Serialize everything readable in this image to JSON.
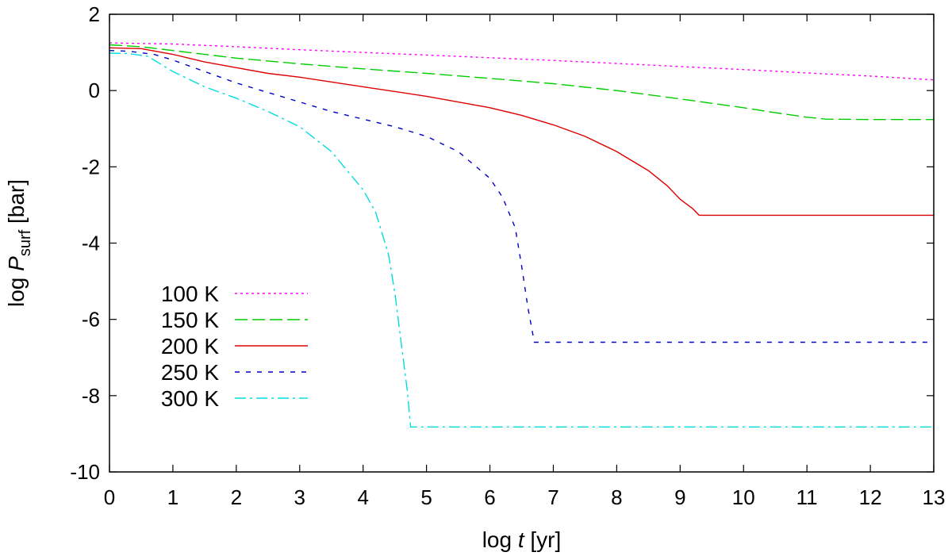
{
  "chart_data": {
    "type": "line",
    "title": "",
    "xlabel": {
      "prefix": "log ",
      "var": "t",
      "suffix": " [yr]"
    },
    "ylabel": {
      "prefix": "log ",
      "var": "P",
      "sub": "surf",
      "suffix": " [bar]"
    },
    "xlim": [
      0,
      13
    ],
    "ylim": [
      -10,
      2
    ],
    "xticks": [
      0,
      1,
      2,
      3,
      4,
      5,
      6,
      7,
      8,
      9,
      10,
      11,
      12,
      13
    ],
    "yticks": [
      -10,
      -8,
      -6,
      -4,
      -2,
      0,
      2
    ],
    "xtick_labels": [
      "0",
      "1",
      "2",
      "3",
      "4",
      "5",
      "6",
      "7",
      "8",
      "9",
      "10",
      "11",
      "12",
      "13"
    ],
    "ytick_labels": [
      "-10",
      "-8",
      "-6",
      "-4",
      "-2",
      "0",
      "2"
    ],
    "grid": false,
    "legend_position": "lower-left",
    "series": [
      {
        "name": "100 K",
        "color": "#ff00ff",
        "style": "dotted",
        "x": [
          0,
          1,
          2,
          3,
          4,
          5,
          6,
          7,
          8,
          9,
          10,
          11,
          12,
          13
        ],
        "y": [
          1.25,
          1.22,
          1.15,
          1.07,
          1.0,
          0.93,
          0.86,
          0.79,
          0.71,
          0.63,
          0.55,
          0.46,
          0.38,
          0.28
        ]
      },
      {
        "name": "150 K",
        "color": "#00cc00",
        "style": "dashed-long",
        "x": [
          0,
          0.5,
          1,
          2,
          3,
          4,
          5,
          6,
          7,
          8,
          9,
          10,
          10.5,
          11,
          11.3,
          12,
          13
        ],
        "y": [
          1.2,
          1.15,
          1.05,
          0.85,
          0.7,
          0.57,
          0.45,
          0.32,
          0.18,
          0.0,
          -0.22,
          -0.45,
          -0.58,
          -0.7,
          -0.75,
          -0.76,
          -0.76
        ]
      },
      {
        "name": "200 K",
        "color": "#dd0000",
        "style": "solid",
        "x": [
          0,
          0.5,
          1,
          1.5,
          2,
          2.5,
          3,
          4,
          5,
          6,
          6.5,
          7,
          7.5,
          8,
          8.5,
          8.8,
          9.0,
          9.2,
          9.3,
          10,
          11,
          12,
          13
        ],
        "y": [
          1.12,
          1.1,
          0.95,
          0.75,
          0.6,
          0.45,
          0.35,
          0.1,
          -0.15,
          -0.45,
          -0.65,
          -0.9,
          -1.2,
          -1.6,
          -2.1,
          -2.5,
          -2.85,
          -3.1,
          -3.27,
          -3.27,
          -3.27,
          -3.27,
          -3.27
        ]
      },
      {
        "name": "250 K",
        "color": "#0000cc",
        "style": "dashed",
        "x": [
          0,
          0.3,
          0.7,
          1,
          1.5,
          2,
          2.5,
          3,
          3.5,
          4,
          4.5,
          5,
          5.5,
          6,
          6.2,
          6.4,
          6.5,
          6.6,
          6.7,
          7,
          8,
          9,
          10,
          11,
          12,
          13
        ],
        "y": [
          1.05,
          1.03,
          0.95,
          0.8,
          0.5,
          0.2,
          -0.05,
          -0.3,
          -0.55,
          -0.75,
          -0.95,
          -1.2,
          -1.6,
          -2.3,
          -2.8,
          -3.6,
          -4.6,
          -5.7,
          -6.6,
          -6.6,
          -6.6,
          -6.6,
          -6.6,
          -6.6,
          -6.6,
          -6.6
        ]
      },
      {
        "name": "300 K",
        "color": "#00dddd",
        "style": "dashdot",
        "x": [
          0,
          0.3,
          0.6,
          1,
          1.5,
          2,
          2.5,
          3,
          3.5,
          4,
          4.2,
          4.4,
          4.5,
          4.6,
          4.7,
          4.75,
          5,
          6,
          7,
          8,
          9,
          10,
          11,
          12,
          13
        ],
        "y": [
          0.98,
          0.97,
          0.9,
          0.5,
          0.1,
          -0.2,
          -0.55,
          -0.95,
          -1.6,
          -2.6,
          -3.2,
          -4.3,
          -5.3,
          -6.6,
          -7.9,
          -8.82,
          -8.82,
          -8.82,
          -8.82,
          -8.82,
          -8.82,
          -8.82,
          -8.82,
          -8.82,
          -8.82
        ]
      }
    ]
  }
}
